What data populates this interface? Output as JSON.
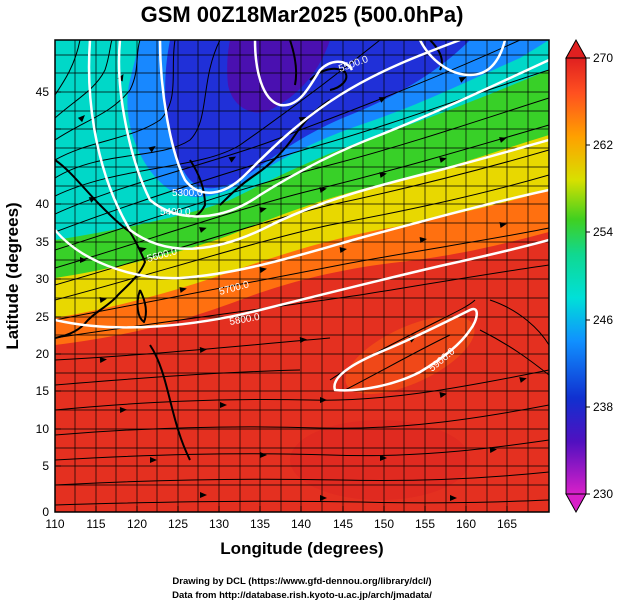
{
  "title": "GSM 00Z18Mar2025 (500.0hPa)",
  "xlabel": "Longitude (degrees)",
  "ylabel": "Latitude  (degrees)",
  "credits": [
    "Drawing by DCL (https://www.gfd-dennou.org/library/dcl/)",
    "Data from http://database.rish.kyoto-u.ac.jp/arch/jmadata/"
  ],
  "x_ticks": [
    "110",
    "115",
    "120",
    "125",
    "130",
    "135",
    "140",
    "145",
    "150",
    "155",
    "160",
    "165"
  ],
  "y_ticks": [
    "0",
    "5",
    "10",
    "15",
    "20",
    "25",
    "30",
    "35",
    "40",
    "45"
  ],
  "colorbar_ticks": [
    "270",
    "262",
    "254",
    "246",
    "238",
    "230"
  ],
  "chart_data": {
    "type": "heatmap",
    "title": "GSM 00Z18Mar2025 (500.0hPa)",
    "xlabel": "Longitude (degrees)",
    "ylabel": "Latitude  (degrees)",
    "xlim": [
      110,
      170
    ],
    "ylim": [
      0,
      50
    ],
    "field_range": [
      230,
      270
    ],
    "colorbar_ticks": [
      230,
      238,
      246,
      254,
      262,
      270
    ],
    "colors": [
      "#d020c0",
      "#3010c8",
      "#1888ff",
      "#00e0d8",
      "#30d030",
      "#e8e000",
      "#ff8800",
      "#e83020"
    ],
    "contour_labels": [
      "5300.0",
      "5400.0",
      "5500.0",
      "5600.0",
      "5700.0",
      "5800.0",
      "5900.0"
    ],
    "contour_placement": [
      {
        "label": "5300.0",
        "lon": 129,
        "lat": 36
      },
      {
        "label": "5400.0",
        "lon": 127,
        "lat": 34
      },
      {
        "label": "5500.0",
        "lon": 138,
        "lat": 45
      },
      {
        "label": "5600.0",
        "lon": 121,
        "lat": 30
      },
      {
        "label": "5700.0",
        "lon": 134,
        "lat": 26
      },
      {
        "label": "5800.0",
        "lon": 130,
        "lat": 23
      },
      {
        "label": "5900.0",
        "lon": 155,
        "lat": 18
      }
    ]
  }
}
